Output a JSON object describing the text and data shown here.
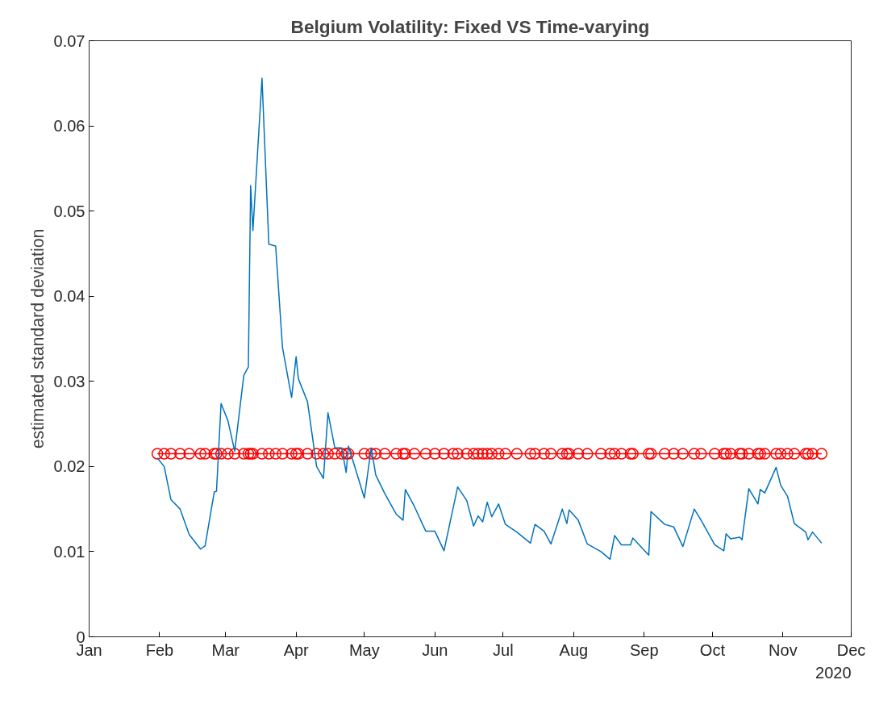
{
  "chart_data": {
    "type": "line",
    "title": "Belgium Volatility: Fixed VS Time-varying",
    "ylabel": "estimated standard deviation",
    "x": [
      "2020-01-31",
      "2020-02-03",
      "2020-02-06",
      "2020-02-10",
      "2020-02-14",
      "2020-02-19",
      "2020-02-21",
      "2020-02-25",
      "2020-02-26",
      "2020-02-28",
      "2020-03-02",
      "2020-03-05",
      "2020-03-09",
      "2020-03-11",
      "2020-03-12",
      "2020-03-13",
      "2020-03-17",
      "2020-03-20",
      "2020-03-23",
      "2020-03-26",
      "2020-03-30",
      "2020-04-01",
      "2020-04-02",
      "2020-04-06",
      "2020-04-10",
      "2020-04-13",
      "2020-04-15",
      "2020-04-18",
      "2020-04-21",
      "2020-04-23",
      "2020-04-24",
      "2020-05-01",
      "2020-05-04",
      "2020-05-06",
      "2020-05-10",
      "2020-05-15",
      "2020-05-18",
      "2020-05-19",
      "2020-05-23",
      "2020-05-28",
      "2020-06-01",
      "2020-06-05",
      "2020-06-09",
      "2020-06-11",
      "2020-06-15",
      "2020-06-18",
      "2020-06-20",
      "2020-06-22",
      "2020-06-24",
      "2020-06-26",
      "2020-06-29",
      "2020-07-02",
      "2020-07-07",
      "2020-07-13",
      "2020-07-15",
      "2020-07-19",
      "2020-07-22",
      "2020-07-27",
      "2020-07-29",
      "2020-07-30",
      "2020-08-03",
      "2020-08-07",
      "2020-08-13",
      "2020-08-17",
      "2020-08-19",
      "2020-08-22",
      "2020-08-26",
      "2020-08-27",
      "2020-09-03",
      "2020-09-04",
      "2020-09-10",
      "2020-09-14",
      "2020-09-18",
      "2020-09-23",
      "2020-09-26",
      "2020-10-02",
      "2020-10-06",
      "2020-10-07",
      "2020-10-09",
      "2020-10-13",
      "2020-10-14",
      "2020-10-17",
      "2020-10-21",
      "2020-10-22",
      "2020-10-24",
      "2020-10-29",
      "2020-10-31",
      "2020-11-03",
      "2020-11-06",
      "2020-11-11",
      "2020-11-12",
      "2020-11-14",
      "2020-11-18"
    ],
    "series": [
      {
        "color": "#0072bd",
        "marker": "none",
        "values": [
          0.021,
          0.02,
          0.0161,
          0.015,
          0.012,
          0.0103,
          0.0107,
          0.017,
          0.0171,
          0.0274,
          0.0254,
          0.0218,
          0.0307,
          0.0317,
          0.053,
          0.0477,
          0.0656,
          0.0461,
          0.0459,
          0.034,
          0.0281,
          0.0329,
          0.0303,
          0.0276,
          0.02,
          0.0186,
          0.0263,
          0.0222,
          0.0222,
          0.0193,
          0.0224,
          0.0163,
          0.0222,
          0.019,
          0.0168,
          0.0144,
          0.0137,
          0.0173,
          0.0153,
          0.0124,
          0.0124,
          0.0101,
          0.0151,
          0.0176,
          0.016,
          0.013,
          0.0142,
          0.0135,
          0.0158,
          0.0141,
          0.0156,
          0.0132,
          0.0123,
          0.011,
          0.0132,
          0.0124,
          0.0109,
          0.015,
          0.0133,
          0.0149,
          0.0137,
          0.0109,
          0.01,
          0.0091,
          0.0119,
          0.0108,
          0.0108,
          0.0116,
          0.0096,
          0.0147,
          0.0132,
          0.0129,
          0.0106,
          0.015,
          0.0137,
          0.0108,
          0.0101,
          0.0121,
          0.0115,
          0.0117,
          0.0114,
          0.0174,
          0.0156,
          0.0173,
          0.0169,
          0.0199,
          0.0178,
          0.0165,
          0.0133,
          0.0123,
          0.0114,
          0.0123,
          0.011
        ]
      },
      {
        "color": "#ff0000",
        "marker": "circle",
        "values": [
          0.0215,
          0.0215,
          0.0215,
          0.0215,
          0.0215,
          0.0215,
          0.0215,
          0.0215,
          0.0215,
          0.0215,
          0.0215,
          0.0215,
          0.0215,
          0.0215,
          0.0215,
          0.0215,
          0.0215,
          0.0215,
          0.0215,
          0.0215,
          0.0215,
          0.0215,
          0.0215,
          0.0215,
          0.0215,
          0.0215,
          0.0215,
          0.0215,
          0.0215,
          0.0215,
          0.0215,
          0.0215,
          0.0215,
          0.0215,
          0.0215,
          0.0215,
          0.0215,
          0.0215,
          0.0215,
          0.0215,
          0.0215,
          0.0215,
          0.0215,
          0.0215,
          0.0215,
          0.0215,
          0.0215,
          0.0215,
          0.0215,
          0.0215,
          0.0215,
          0.0215,
          0.0215,
          0.0215,
          0.0215,
          0.0215,
          0.0215,
          0.0215,
          0.0215,
          0.0215,
          0.0215,
          0.0215,
          0.0215,
          0.0215,
          0.0215,
          0.0215,
          0.0215,
          0.0215,
          0.0215,
          0.0215,
          0.0215,
          0.0215,
          0.0215,
          0.0215,
          0.0215,
          0.0215,
          0.0215,
          0.0215,
          0.0215,
          0.0215,
          0.0215,
          0.0215,
          0.0215,
          0.0215,
          0.0215,
          0.0215,
          0.0215,
          0.0215,
          0.0215,
          0.0215,
          0.0215,
          0.0215,
          0.0215
        ]
      }
    ],
    "xlim": [
      "2020-01-01",
      "2020-12-01"
    ],
    "xticks": [
      {
        "value": "2020-01-01",
        "label": "Jan"
      },
      {
        "value": "2020-02-01",
        "label": "Feb"
      },
      {
        "value": "2020-03-01",
        "label": "Mar"
      },
      {
        "value": "2020-04-01",
        "label": "Apr"
      },
      {
        "value": "2020-05-01",
        "label": "May"
      },
      {
        "value": "2020-06-01",
        "label": "Jun"
      },
      {
        "value": "2020-07-01",
        "label": "Jul"
      },
      {
        "value": "2020-08-01",
        "label": "Aug"
      },
      {
        "value": "2020-09-01",
        "label": "Sep"
      },
      {
        "value": "2020-10-01",
        "label": "Oct"
      },
      {
        "value": "2020-11-01",
        "label": "Nov"
      },
      {
        "value": "2020-12-01",
        "label": "Dec"
      }
    ],
    "ylim": [
      0,
      0.07
    ],
    "yticks": [
      0,
      0.01,
      0.02,
      0.03,
      0.04,
      0.05,
      0.06,
      0.07
    ],
    "annotations": [
      "2020"
    ],
    "grid": false,
    "line_style": "solid"
  }
}
